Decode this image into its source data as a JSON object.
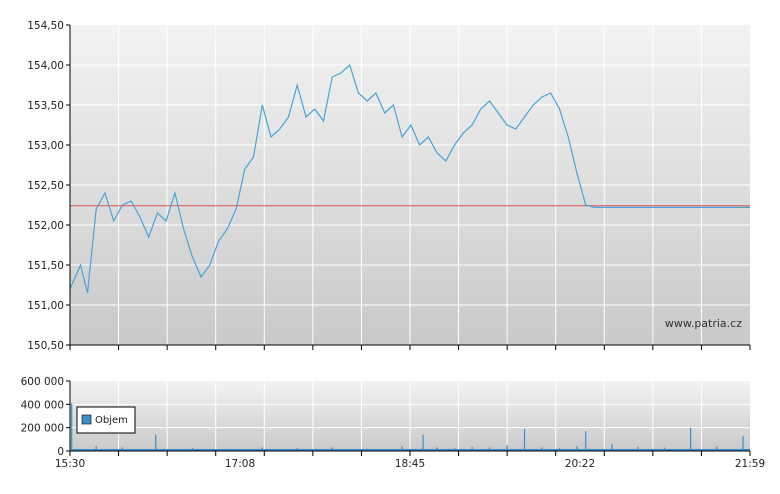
{
  "watermark": "www.patria.cz",
  "colors": {
    "price_line": "#4aa3d6",
    "reference_line": "#d9534f",
    "volume_bar": "#3a8fc8",
    "grid": "#ffffff",
    "axis": "#000000",
    "bg_top": "#f3f3f3",
    "bg_bottom": "#c9c9c9"
  },
  "chart_data": [
    {
      "type": "line",
      "title": "",
      "xlabel": "",
      "ylabel": "",
      "xlim": [
        "15:30",
        "21:59"
      ],
      "ylim": [
        150.5,
        154.5
      ],
      "y_ticks": [
        "154,50",
        "154,00",
        "153,50",
        "153,00",
        "152,50",
        "152,00",
        "151,50",
        "151,00",
        "150,50"
      ],
      "grid": true,
      "reference_line": 152.24,
      "series": [
        {
          "x": [
            "15:30",
            "15:36",
            "15:40",
            "15:45",
            "15:50",
            "15:55",
            "16:00",
            "16:05",
            "16:10",
            "16:15",
            "16:20",
            "16:25",
            "16:30",
            "16:35",
            "16:40",
            "16:45",
            "16:50",
            "16:55",
            "17:00",
            "17:05",
            "17:10",
            "17:15",
            "17:20",
            "17:25",
            "17:30",
            "17:35",
            "17:40",
            "17:45",
            "17:50",
            "17:55",
            "18:00",
            "18:05",
            "18:10",
            "18:15",
            "18:20",
            "18:25",
            "18:30",
            "18:35",
            "18:40",
            "18:45",
            "18:50",
            "18:55",
            "19:00",
            "19:05",
            "19:10",
            "19:15",
            "19:20",
            "19:25",
            "19:30",
            "19:35",
            "19:40",
            "19:45",
            "19:50",
            "19:55",
            "20:00",
            "20:05",
            "20:10",
            "20:15",
            "20:20",
            "20:25",
            "20:30",
            "20:35",
            "20:40",
            "20:45",
            "20:50",
            "20:55",
            "21:00",
            "21:05",
            "21:10",
            "21:15",
            "21:20",
            "21:25",
            "21:30",
            "21:35",
            "21:40",
            "21:45",
            "21:50",
            "21:55",
            "21:59"
          ],
          "values": [
            151.2,
            151.5,
            151.15,
            152.2,
            152.4,
            152.05,
            152.25,
            152.3,
            152.1,
            151.85,
            152.15,
            152.05,
            152.4,
            151.95,
            151.6,
            151.35,
            151.5,
            151.8,
            151.95,
            152.2,
            152.7,
            152.85,
            153.5,
            153.1,
            153.2,
            153.35,
            153.75,
            153.35,
            153.45,
            153.3,
            153.85,
            153.9,
            154.0,
            153.65,
            153.55,
            153.65,
            153.4,
            153.5,
            153.1,
            153.25,
            153.0,
            153.1,
            152.9,
            152.8,
            153.0,
            153.15,
            153.25,
            153.45,
            153.55,
            153.4,
            153.25,
            153.2,
            153.35,
            153.5,
            153.6,
            153.65,
            153.45,
            153.1,
            152.65,
            152.25,
            152.22,
            152.22,
            152.22,
            152.22,
            152.22,
            152.22,
            152.22,
            152.22,
            152.22,
            152.22,
            152.22,
            152.22,
            152.22,
            152.22,
            152.22,
            152.22,
            152.22,
            152.22,
            152.22
          ]
        }
      ]
    },
    {
      "type": "bar",
      "title": "",
      "xlabel": "",
      "ylabel": "",
      "x_ticks": [
        "15:30",
        "17:08",
        "18:45",
        "20:22",
        "21:59"
      ],
      "ylim": [
        0,
        600000
      ],
      "y_ticks": [
        "600 000",
        "400 000",
        "200 000",
        "0"
      ],
      "grid": true,
      "legend": {
        "placement": "top-left",
        "entries": [
          "Objem"
        ]
      },
      "series": [
        {
          "name": "Objem",
          "x": [
            "15:31",
            "15:45",
            "16:00",
            "16:19",
            "16:40",
            "17:00",
            "17:20",
            "17:40",
            "18:00",
            "18:20",
            "18:40",
            "18:52",
            "19:00",
            "19:10",
            "19:20",
            "19:30",
            "19:40",
            "19:50",
            "20:00",
            "20:10",
            "20:20",
            "20:25",
            "20:40",
            "20:55",
            "21:10",
            "21:25",
            "21:40",
            "21:55"
          ],
          "values": [
            410000,
            40000,
            30000,
            140000,
            25000,
            20000,
            30000,
            25000,
            30000,
            20000,
            40000,
            140000,
            30000,
            25000,
            35000,
            30000,
            50000,
            190000,
            30000,
            25000,
            40000,
            170000,
            60000,
            35000,
            30000,
            200000,
            40000,
            130000
          ]
        }
      ]
    }
  ]
}
